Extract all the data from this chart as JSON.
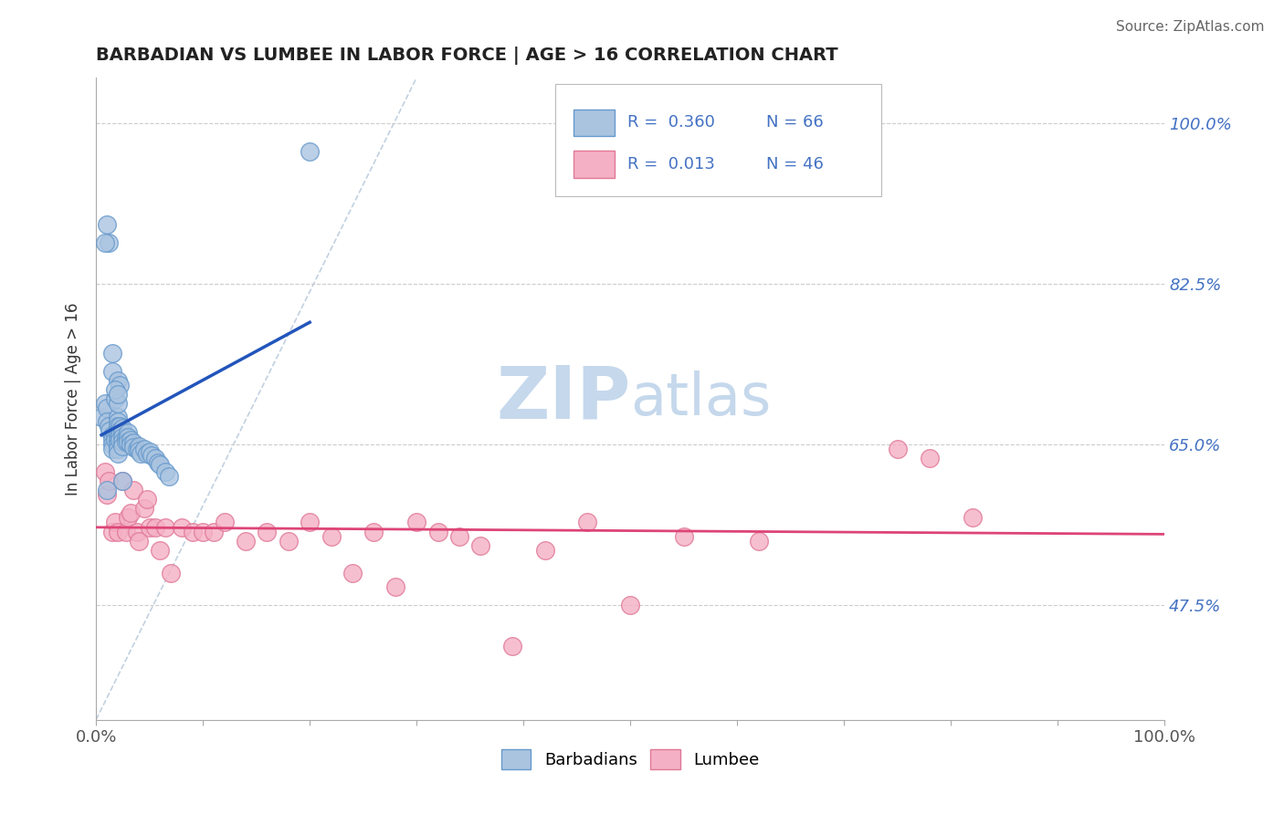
{
  "title": "BARBADIAN VS LUMBEE IN LABOR FORCE | AGE > 16 CORRELATION CHART",
  "source_text": "Source: ZipAtlas.com",
  "ylabel": "In Labor Force | Age > 16",
  "xlim": [
    0.0,
    1.0
  ],
  "ylim": [
    0.35,
    1.05
  ],
  "yticks": [
    0.475,
    0.65,
    0.825,
    1.0
  ],
  "ytick_labels": [
    "47.5%",
    "65.0%",
    "82.5%",
    "100.0%"
  ],
  "xtick_positions": [
    0.0,
    0.1,
    0.2,
    0.3,
    0.4,
    0.5,
    0.6,
    0.7,
    0.8,
    0.9,
    1.0
  ],
  "xtick_labels_shown": {
    "0.0": "0.0%",
    "1.0": "100.0%"
  },
  "barbadian_color": "#aac4e0",
  "lumbee_color": "#f4b0c4",
  "barbadian_edge_color": "#6699cc",
  "lumbee_edge_color": "#e07898",
  "trend_blue": "#2255bb",
  "trend_pink": "#dd4477",
  "diag_color": "#bbccdd",
  "legend_R1": "0.360",
  "legend_N1": "66",
  "legend_R2": "0.013",
  "legend_N2": "46",
  "legend_label1": "Barbadians",
  "legend_label2": "Lumbee",
  "watermark_zip": "ZIP",
  "watermark_atlas": "atlas",
  "watermark_color": "#c5d8ec",
  "background_color": "#ffffff",
  "grid_color": "#cccccc",
  "right_tick_color": "#4472c4",
  "barbadian_x": [
    0.005,
    0.008,
    0.01,
    0.01,
    0.012,
    0.013,
    0.015,
    0.015,
    0.015,
    0.015,
    0.018,
    0.018,
    0.02,
    0.02,
    0.02,
    0.02,
    0.02,
    0.02,
    0.02,
    0.02,
    0.02,
    0.022,
    0.022,
    0.022,
    0.022,
    0.025,
    0.025,
    0.025,
    0.025,
    0.025,
    0.028,
    0.028,
    0.03,
    0.03,
    0.03,
    0.032,
    0.032,
    0.035,
    0.035,
    0.038,
    0.04,
    0.04,
    0.042,
    0.045,
    0.048,
    0.05,
    0.052,
    0.055,
    0.058,
    0.06,
    0.065,
    0.068,
    0.018,
    0.02,
    0.015,
    0.02,
    0.022,
    0.018,
    0.02,
    0.015,
    0.025,
    0.01,
    0.012,
    0.008,
    0.2,
    0.01
  ],
  "barbadian_y": [
    0.68,
    0.695,
    0.69,
    0.675,
    0.67,
    0.665,
    0.66,
    0.655,
    0.65,
    0.645,
    0.66,
    0.655,
    0.68,
    0.675,
    0.67,
    0.665,
    0.66,
    0.655,
    0.65,
    0.645,
    0.64,
    0.67,
    0.665,
    0.66,
    0.655,
    0.668,
    0.663,
    0.658,
    0.653,
    0.648,
    0.658,
    0.653,
    0.663,
    0.658,
    0.653,
    0.655,
    0.65,
    0.652,
    0.647,
    0.645,
    0.648,
    0.643,
    0.64,
    0.645,
    0.64,
    0.642,
    0.638,
    0.635,
    0.63,
    0.628,
    0.62,
    0.615,
    0.7,
    0.695,
    0.73,
    0.72,
    0.715,
    0.71,
    0.705,
    0.75,
    0.61,
    0.89,
    0.87,
    0.87,
    0.97,
    0.6
  ],
  "lumbee_x": [
    0.008,
    0.01,
    0.012,
    0.015,
    0.018,
    0.02,
    0.025,
    0.028,
    0.03,
    0.032,
    0.035,
    0.038,
    0.04,
    0.045,
    0.048,
    0.05,
    0.055,
    0.06,
    0.065,
    0.07,
    0.08,
    0.09,
    0.1,
    0.11,
    0.12,
    0.14,
    0.16,
    0.18,
    0.2,
    0.22,
    0.24,
    0.26,
    0.28,
    0.3,
    0.32,
    0.34,
    0.36,
    0.39,
    0.42,
    0.46,
    0.5,
    0.55,
    0.62,
    0.75,
    0.78,
    0.82
  ],
  "lumbee_y": [
    0.62,
    0.595,
    0.61,
    0.555,
    0.565,
    0.555,
    0.61,
    0.555,
    0.57,
    0.575,
    0.6,
    0.555,
    0.545,
    0.58,
    0.59,
    0.56,
    0.56,
    0.535,
    0.56,
    0.51,
    0.56,
    0.555,
    0.555,
    0.555,
    0.565,
    0.545,
    0.555,
    0.545,
    0.565,
    0.55,
    0.51,
    0.555,
    0.495,
    0.565,
    0.555,
    0.55,
    0.54,
    0.43,
    0.535,
    0.565,
    0.475,
    0.55,
    0.545,
    0.645,
    0.635,
    0.57
  ]
}
